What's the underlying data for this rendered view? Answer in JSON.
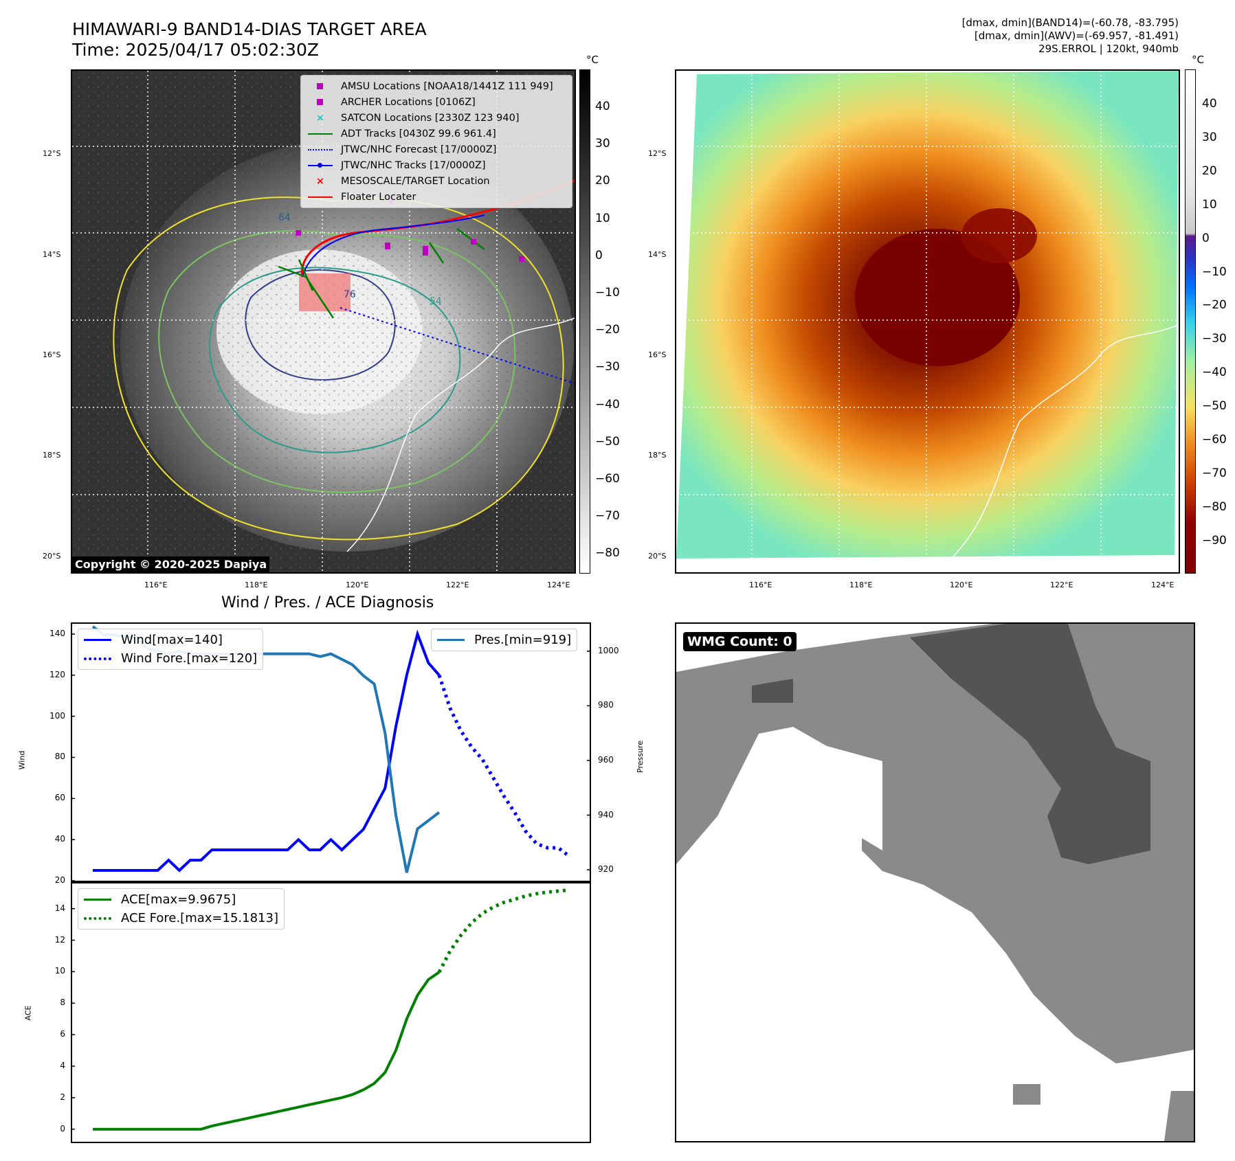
{
  "header": {
    "title_line1": "HIMAWARI-9 BAND14-DIAS TARGET AREA",
    "title_line2": "Time: 2025/04/17 05:02:30Z",
    "info_line1": "[dmax, dmin](BAND14)=(-60.78, -83.795)",
    "info_line2": "[dmax, dmin](AWV)=(-69.957, -81.491)",
    "info_line3": "29S.ERROL | 120kt, 940mb"
  },
  "units": {
    "left_cb": "°C",
    "right_cb": "°C"
  },
  "map": {
    "lat_labels": [
      "12°S",
      "14°S",
      "16°S",
      "18°S",
      "20°S"
    ],
    "lon_labels": [
      "116°E",
      "118°E",
      "120°E",
      "122°E",
      "124°E"
    ],
    "copyright": "Copyright © 2020-2025 Dapiya",
    "legend": [
      {
        "label": "AMSU Locations [NOAA18/1441Z 111 949]",
        "symbol": "square",
        "color": "#c000c0"
      },
      {
        "label": "ARCHER Locations [0106Z]",
        "symbol": "square",
        "color": "#c000c0"
      },
      {
        "label": "SATCON Locations [2330Z 123 940]",
        "symbol": "x",
        "color": "#20c0c0"
      },
      {
        "label": "ADT Tracks [0430Z 99.6 961.4]",
        "symbol": "line",
        "color": "#008000"
      },
      {
        "label": "JTWC/NHC Forecast [17/0000Z]",
        "symbol": "dotted",
        "color": "#0000ff"
      },
      {
        "label": "JTWC/NHC Tracks [17/0000Z]",
        "symbol": "dotline",
        "color": "#0000ff"
      },
      {
        "label": "MESOSCALE/TARGET Location",
        "symbol": "x",
        "color": "#ff0000"
      },
      {
        "label": "Floater Locater",
        "symbol": "line",
        "color": "#ff0000"
      }
    ],
    "contour_labels": [
      "64",
      "76",
      "54"
    ]
  },
  "colorbar_left": {
    "ticks": [
      "40",
      "30",
      "20",
      "10",
      "0",
      "−10",
      "−20",
      "−30",
      "−40",
      "−50",
      "−60",
      "−70",
      "−80"
    ]
  },
  "colorbar_right": {
    "ticks": [
      "40",
      "30",
      "20",
      "10",
      "0",
      "−10",
      "−20",
      "−30",
      "−40",
      "−50",
      "−60",
      "−70",
      "−80",
      "−90"
    ]
  },
  "wmg": {
    "label": "WMG Count: 0"
  },
  "chart_data": [
    {
      "type": "line",
      "title": "Wind / Pres. / ACE Diagnosis",
      "ylabel": "Wind",
      "ylabel_right": "Pressure",
      "ylim": [
        20,
        145
      ],
      "ylim_right": [
        916,
        1010
      ],
      "yticks": [
        "140",
        "120",
        "100",
        "80",
        "60",
        "40",
        "20"
      ],
      "yticks_right": [
        "1000",
        "980",
        "960",
        "940",
        "920"
      ],
      "series": [
        {
          "name": "Wind[max=140]",
          "style": "solid",
          "color": "#0000ff",
          "x": [
            0,
            1,
            2,
            3,
            4,
            5,
            6,
            7,
            8,
            9,
            10,
            11,
            12,
            13,
            14,
            15,
            16,
            17,
            18,
            19,
            20,
            21,
            22,
            23,
            24,
            25,
            26,
            27,
            28,
            29,
            30
          ],
          "values": [
            25,
            25,
            25,
            25,
            25,
            25,
            25,
            30,
            25,
            30,
            30,
            35,
            35,
            35,
            35,
            35,
            35,
            35,
            35,
            40,
            35,
            35,
            40,
            35,
            40,
            45,
            55,
            65,
            95,
            120,
            140
          ]
        },
        {
          "name": "Wind Fore.[max=120]",
          "style": "dotted",
          "color": "#0000ff",
          "x": [
            32,
            33,
            34,
            35,
            36,
            37,
            38,
            39,
            40,
            41,
            42,
            43,
            44
          ],
          "values": [
            120,
            104,
            93,
            85,
            79,
            70,
            61,
            53,
            44,
            38,
            36,
            36,
            32
          ]
        },
        {
          "name": "Pres.[min=919]",
          "style": "solid",
          "color": "#1f77b4",
          "axis": "right",
          "x": [
            0,
            1,
            2,
            3,
            4,
            5,
            6,
            7,
            8,
            9,
            10,
            11,
            12,
            13,
            14,
            15,
            16,
            17,
            18,
            19,
            20,
            21,
            22,
            23,
            24,
            25,
            26,
            27,
            28,
            29,
            30,
            31,
            32
          ],
          "values": [
            1009,
            1006,
            1006,
            1005,
            1005,
            1001,
            1000,
            999,
            1000,
            999,
            999,
            999,
            999,
            999,
            999,
            999,
            999,
            999,
            999,
            999,
            999,
            998,
            999,
            997,
            995,
            991,
            988,
            970,
            940,
            919,
            935,
            938,
            941
          ]
        }
      ],
      "extra_points": {
        "wind_tail_x": [
          30,
          31,
          32
        ],
        "wind_tail": [
          140,
          126,
          120
        ]
      }
    },
    {
      "type": "line",
      "ylabel": "ACE",
      "ylim": [
        -0.8,
        15.6
      ],
      "yticks": [
        "14",
        "12",
        "10",
        "8",
        "6",
        "4",
        "2",
        "0"
      ],
      "series": [
        {
          "name": "ACE[max=9.9675]",
          "style": "solid",
          "color": "#008000",
          "x": [
            0,
            1,
            2,
            3,
            4,
            5,
            6,
            7,
            8,
            9,
            10,
            11,
            12,
            13,
            14,
            15,
            16,
            17,
            18,
            19,
            20,
            21,
            22,
            23,
            24,
            25,
            26,
            27,
            28,
            29,
            30,
            31,
            32
          ],
          "values": [
            0,
            0,
            0,
            0,
            0,
            0,
            0,
            0,
            0,
            0,
            0,
            0.2,
            0.35,
            0.5,
            0.65,
            0.8,
            0.95,
            1.1,
            1.25,
            1.4,
            1.55,
            1.7,
            1.85,
            2.0,
            2.2,
            2.5,
            2.9,
            3.6,
            5.0,
            7.0,
            8.5,
            9.5,
            9.9675
          ]
        },
        {
          "name": "ACE Fore.[max=15.1813]",
          "style": "dotted",
          "color": "#008000",
          "x": [
            32,
            33,
            34,
            35,
            36,
            37,
            38,
            39,
            40,
            41,
            42,
            43,
            44
          ],
          "values": [
            9.9675,
            11.3,
            12.3,
            13.1,
            13.7,
            14.1,
            14.4,
            14.6,
            14.8,
            14.95,
            15.05,
            15.12,
            15.1813
          ]
        }
      ]
    }
  ]
}
